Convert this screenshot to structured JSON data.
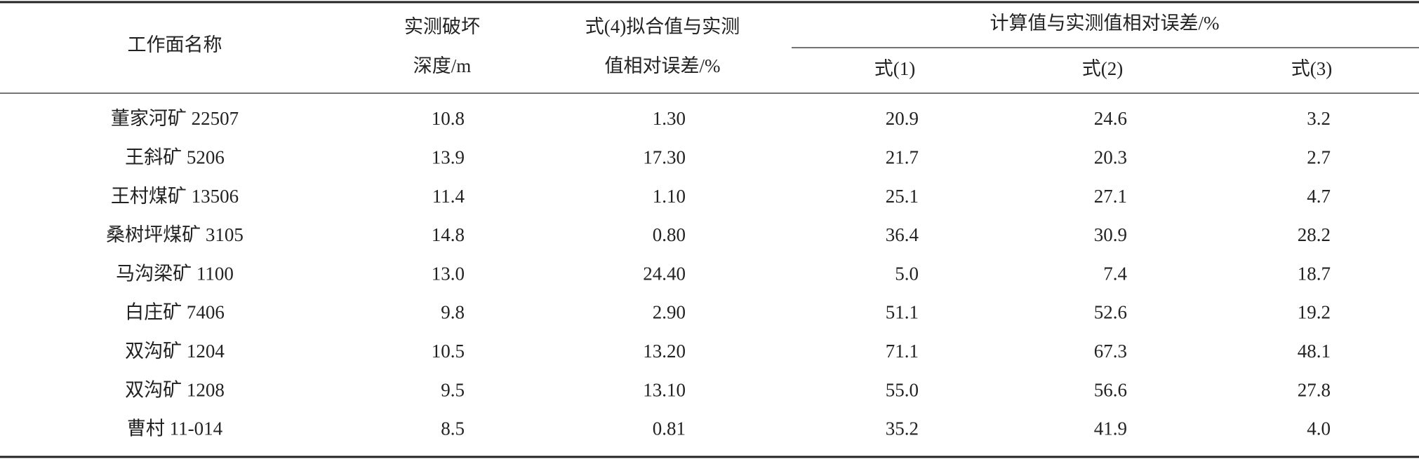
{
  "table": {
    "header": {
      "name": "工作面名称",
      "depth": [
        "实测破坏",
        "深度/m"
      ],
      "fit": [
        "式(4)拟合值与实测",
        "值相对误差/%"
      ],
      "group": "计算值与实测值相对误差/%",
      "sub": [
        "式(1)",
        "式(2)",
        "式(3)"
      ]
    },
    "rows": [
      [
        "董家河矿 22507",
        "10.8",
        "1.30",
        "20.9",
        "24.6",
        "3.2"
      ],
      [
        "王斜矿 5206",
        "13.9",
        "17.30",
        "21.7",
        "20.3",
        "2.7"
      ],
      [
        "王村煤矿 13506",
        "11.4",
        "1.10",
        "25.1",
        "27.1",
        "4.7"
      ],
      [
        "桑树坪煤矿 3105",
        "14.8",
        "0.80",
        "36.4",
        "30.9",
        "28.2"
      ],
      [
        "马沟梁矿 1100",
        "13.0",
        "24.40",
        "5.0",
        "7.4",
        "18.7"
      ],
      [
        "白庄矿 7406",
        "9.8",
        "2.90",
        "51.1",
        "52.6",
        "19.2"
      ],
      [
        "双沟矿 1204",
        "10.5",
        "13.20",
        "71.1",
        "67.3",
        "48.1"
      ],
      [
        "双沟矿 1208",
        "9.5",
        "13.10",
        "55.0",
        "56.6",
        "27.8"
      ],
      [
        "曹村 11-014",
        "8.5",
        "0.81",
        "35.2",
        "41.9",
        "4.0"
      ]
    ]
  }
}
